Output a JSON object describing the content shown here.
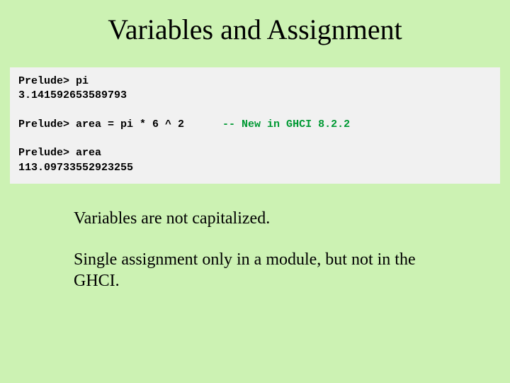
{
  "slide": {
    "title": "Variables and Assignment",
    "background_color": "#ccf2b3",
    "code_background_color": "#f1f1f1",
    "comment_color": "#009933",
    "title_fontsize": 40,
    "code_fontsize": 15,
    "body_fontsize": 24
  },
  "code": {
    "line1": "Prelude> pi",
    "line2": "3.141592653589793",
    "line3": "",
    "line4_cmd": "Prelude> area = pi * 6 ^ 2      ",
    "line4_comment": "-- New in GHCI 8.2.2",
    "line5": "",
    "line6": "Prelude> area",
    "line7": "113.09733552923255"
  },
  "body": {
    "p1": "Variables are not capitalized.",
    "p2": "Single assignment only in a module, but not in the GHCI."
  }
}
